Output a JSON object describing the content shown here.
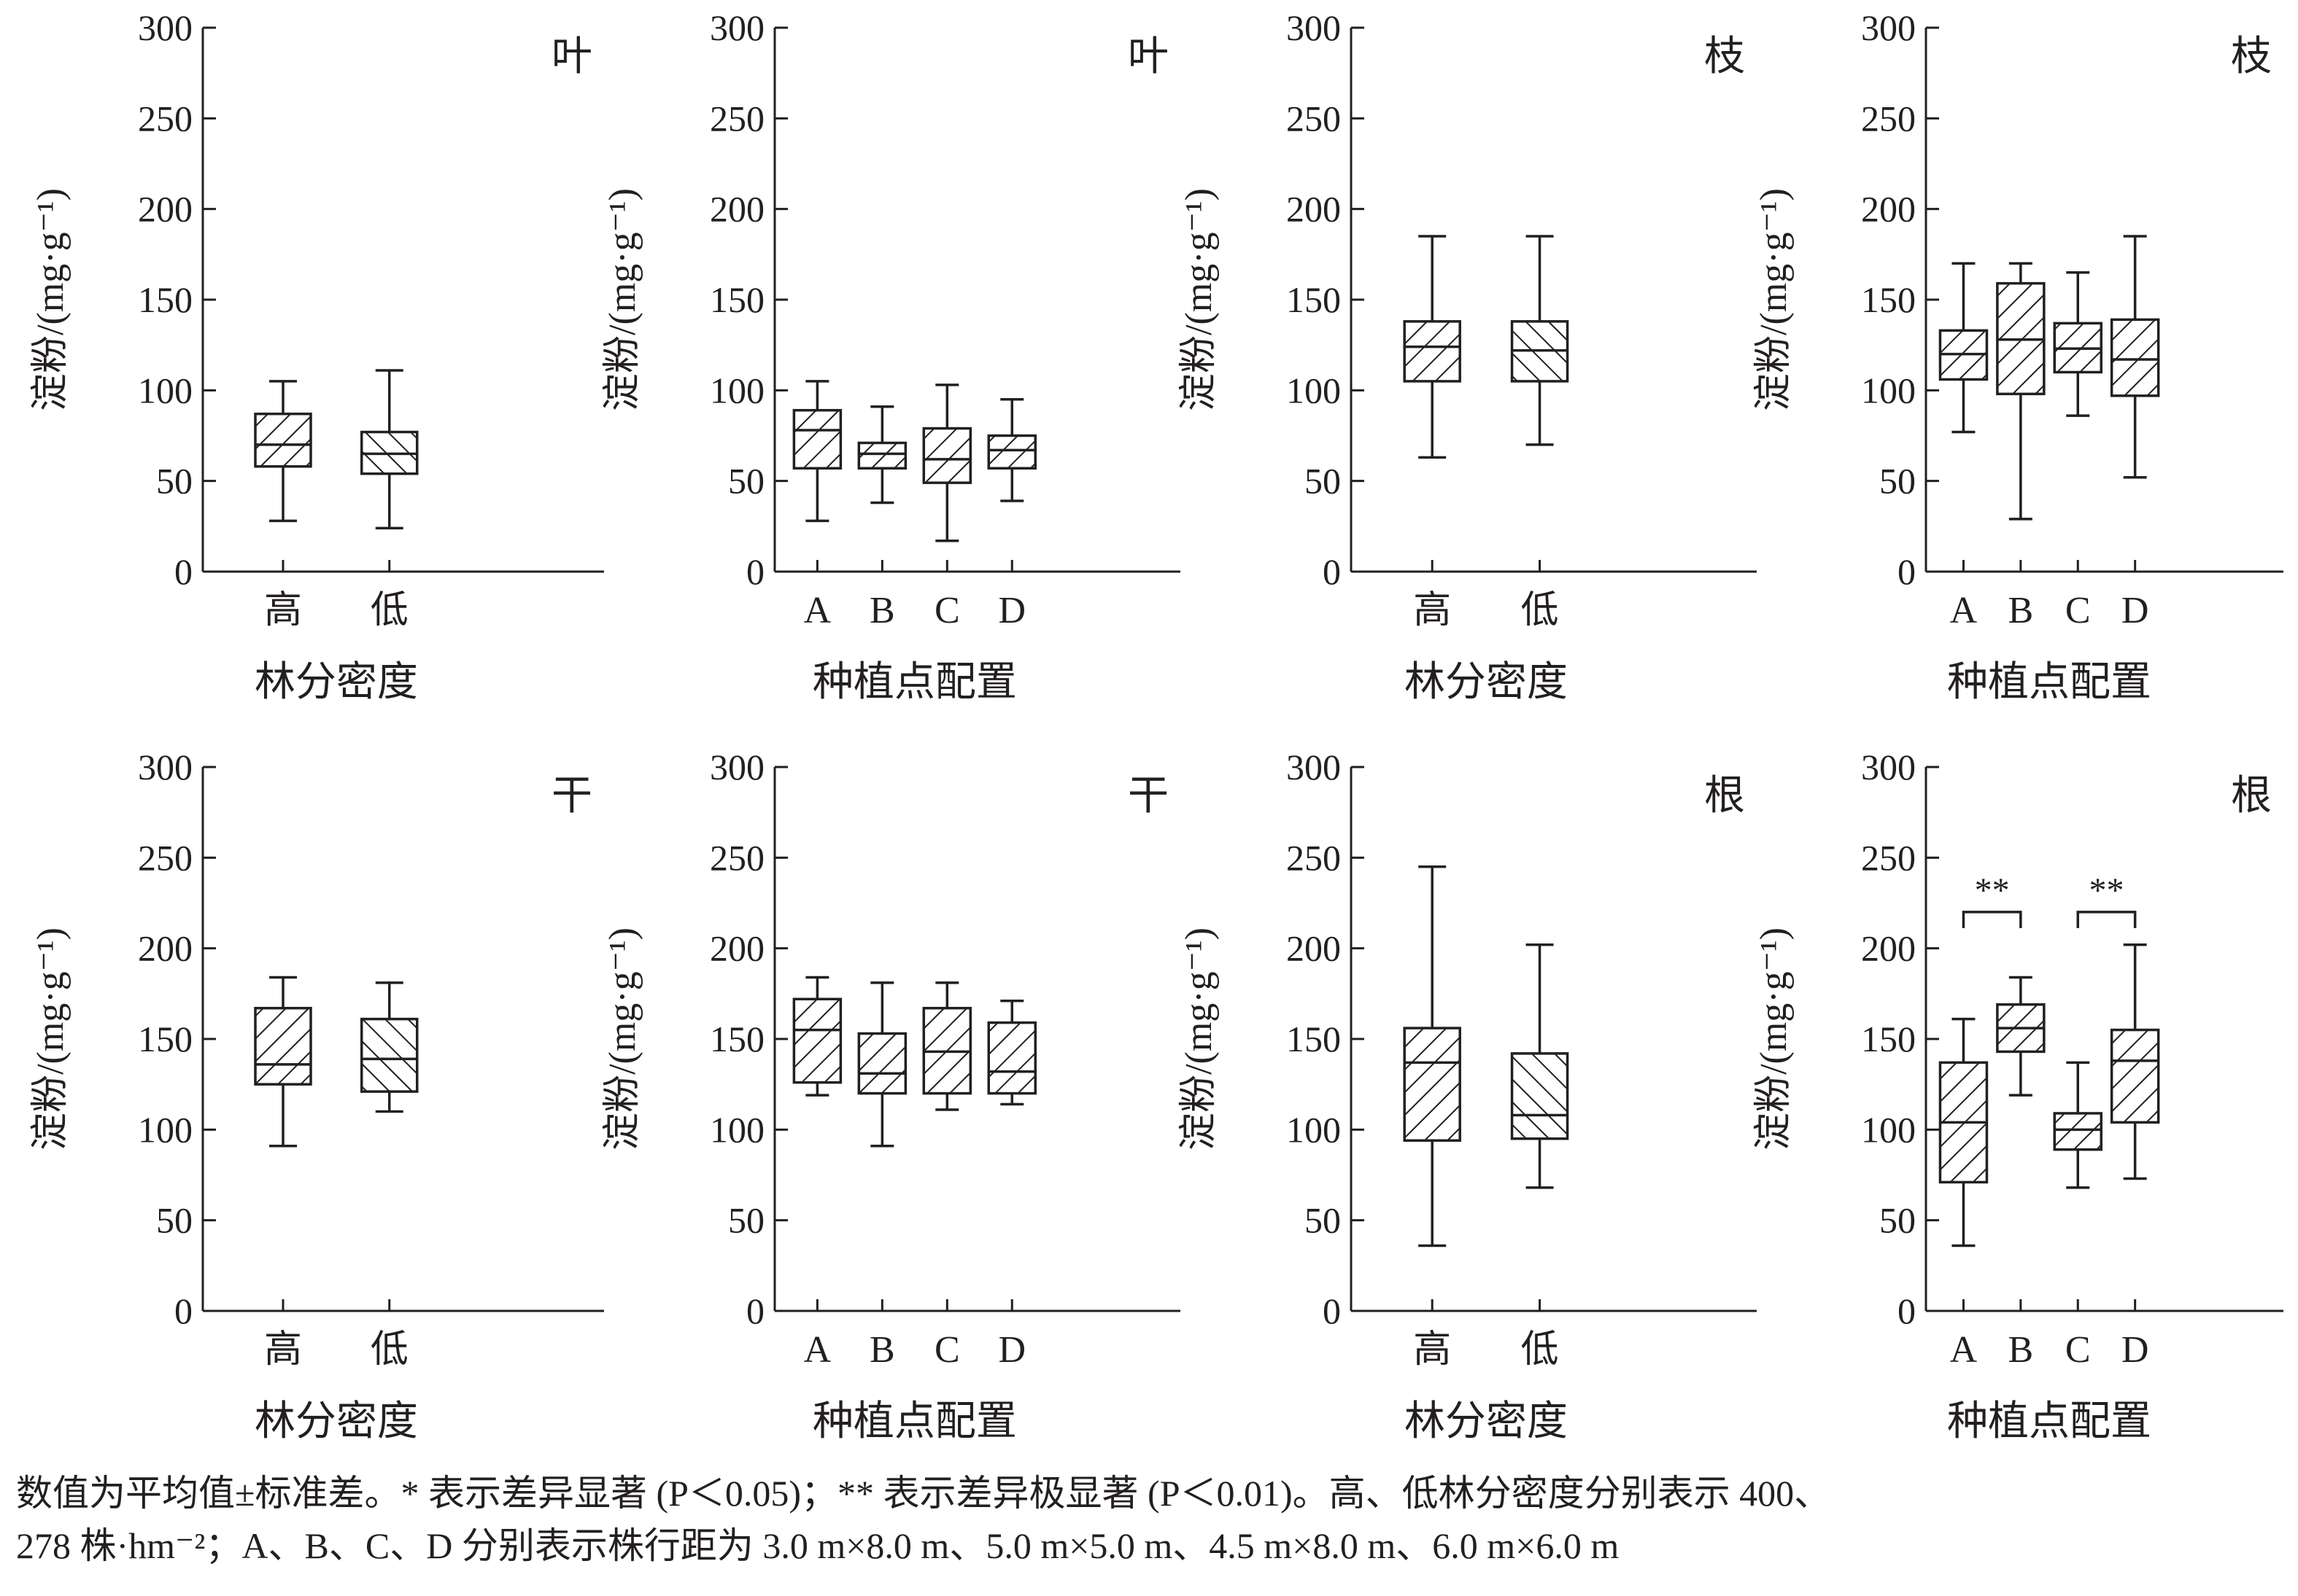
{
  "figure": {
    "caption_line1": "数值为平均值±标准差。* 表示差异显著 (P＜0.05)；** 表示差异极显著 (P＜0.01)。高、低林分密度分别表示 400、",
    "caption_line2": "278 株·hm⁻²；A、B、C、D 分别表示株行距为 3.0 m×8.0 m、5.0 m×5.0 m、4.5 m×8.0 m、6.0 m×6.0 m"
  },
  "colors": {
    "ink": "#231f20",
    "box_fill": "#ffffff"
  },
  "chart_data": [
    {
      "type": "box",
      "tag": "叶",
      "xlabel": "林分密度",
      "ylabel": "淀粉/(mg·g⁻¹)",
      "ylim": [
        0,
        300
      ],
      "yticks": [
        0,
        50,
        100,
        150,
        200,
        250,
        300
      ],
      "categories": [
        "高",
        "低"
      ],
      "boxes": [
        {
          "min": 28,
          "q1": 58,
          "median": 70,
          "q3": 87,
          "max": 105,
          "hatch": "forward"
        },
        {
          "min": 24,
          "q1": 54,
          "median": 65,
          "q3": 77,
          "max": 111,
          "hatch": "back"
        }
      ]
    },
    {
      "type": "box",
      "tag": "叶",
      "xlabel": "种植点配置",
      "ylabel": "淀粉/(mg·g⁻¹)",
      "ylim": [
        0,
        300
      ],
      "yticks": [
        0,
        50,
        100,
        150,
        200,
        250,
        300
      ],
      "categories": [
        "A",
        "B",
        "C",
        "D"
      ],
      "boxes": [
        {
          "min": 28,
          "q1": 57,
          "median": 78,
          "q3": 89,
          "max": 105,
          "hatch": "forward"
        },
        {
          "min": 38,
          "q1": 57,
          "median": 65,
          "q3": 71,
          "max": 91,
          "hatch": "forward"
        },
        {
          "min": 17,
          "q1": 49,
          "median": 62,
          "q3": 79,
          "max": 103,
          "hatch": "forward"
        },
        {
          "min": 39,
          "q1": 57,
          "median": 67,
          "q3": 75,
          "max": 95,
          "hatch": "forward"
        }
      ]
    },
    {
      "type": "box",
      "tag": "枝",
      "xlabel": "林分密度",
      "ylabel": "淀粉/(mg·g⁻¹)",
      "ylim": [
        0,
        300
      ],
      "yticks": [
        0,
        50,
        100,
        150,
        200,
        250,
        300
      ],
      "categories": [
        "高",
        "低"
      ],
      "boxes": [
        {
          "min": 63,
          "q1": 105,
          "median": 124,
          "q3": 138,
          "max": 185,
          "hatch": "forward"
        },
        {
          "min": 70,
          "q1": 105,
          "median": 122,
          "q3": 138,
          "max": 185,
          "hatch": "back"
        }
      ]
    },
    {
      "type": "box",
      "tag": "枝",
      "xlabel": "种植点配置",
      "ylabel": "淀粉/(mg·g⁻¹)",
      "ylim": [
        0,
        300
      ],
      "yticks": [
        0,
        50,
        100,
        150,
        200,
        250,
        300
      ],
      "categories": [
        "A",
        "B",
        "C",
        "D"
      ],
      "boxes": [
        {
          "min": 77,
          "q1": 106,
          "median": 120,
          "q3": 133,
          "max": 170,
          "hatch": "forward"
        },
        {
          "min": 29,
          "q1": 98,
          "median": 128,
          "q3": 159,
          "max": 170,
          "hatch": "forward"
        },
        {
          "min": 86,
          "q1": 110,
          "median": 123,
          "q3": 137,
          "max": 165,
          "hatch": "forward"
        },
        {
          "min": 52,
          "q1": 97,
          "median": 117,
          "q3": 139,
          "max": 185,
          "hatch": "forward"
        }
      ]
    },
    {
      "type": "box",
      "tag": "干",
      "xlabel": "林分密度",
      "ylabel": "淀粉/(mg·g⁻¹)",
      "ylim": [
        0,
        300
      ],
      "yticks": [
        0,
        50,
        100,
        150,
        200,
        250,
        300
      ],
      "categories": [
        "高",
        "低"
      ],
      "boxes": [
        {
          "min": 91,
          "q1": 125,
          "median": 136,
          "q3": 167,
          "max": 184,
          "hatch": "forward"
        },
        {
          "min": 110,
          "q1": 121,
          "median": 139,
          "q3": 161,
          "max": 181,
          "hatch": "back"
        }
      ]
    },
    {
      "type": "box",
      "tag": "干",
      "xlabel": "种植点配置",
      "ylabel": "淀粉/(mg·g⁻¹)",
      "ylim": [
        0,
        300
      ],
      "yticks": [
        0,
        50,
        100,
        150,
        200,
        250,
        300
      ],
      "categories": [
        "A",
        "B",
        "C",
        "D"
      ],
      "boxes": [
        {
          "min": 119,
          "q1": 126,
          "median": 155,
          "q3": 172,
          "max": 184,
          "hatch": "forward"
        },
        {
          "min": 91,
          "q1": 120,
          "median": 131,
          "q3": 153,
          "max": 181,
          "hatch": "forward"
        },
        {
          "min": 111,
          "q1": 120,
          "median": 143,
          "q3": 167,
          "max": 181,
          "hatch": "forward"
        },
        {
          "min": 114,
          "q1": 120,
          "median": 132,
          "q3": 159,
          "max": 171,
          "hatch": "forward"
        }
      ]
    },
    {
      "type": "box",
      "tag": "根",
      "xlabel": "林分密度",
      "ylabel": "淀粉/(mg·g⁻¹)",
      "ylim": [
        0,
        300
      ],
      "yticks": [
        0,
        50,
        100,
        150,
        200,
        250,
        300
      ],
      "categories": [
        "高",
        "低"
      ],
      "boxes": [
        {
          "min": 36,
          "q1": 94,
          "median": 137,
          "q3": 156,
          "max": 245,
          "hatch": "forward"
        },
        {
          "min": 68,
          "q1": 95,
          "median": 108,
          "q3": 142,
          "max": 202,
          "hatch": "back"
        }
      ]
    },
    {
      "type": "box",
      "tag": "根",
      "xlabel": "种植点配置",
      "ylabel": "淀粉/(mg·g⁻¹)",
      "ylim": [
        0,
        300
      ],
      "yticks": [
        0,
        50,
        100,
        150,
        200,
        250,
        300
      ],
      "categories": [
        "A",
        "B",
        "C",
        "D"
      ],
      "boxes": [
        {
          "min": 36,
          "q1": 71,
          "median": 104,
          "q3": 137,
          "max": 161,
          "hatch": "forward"
        },
        {
          "min": 119,
          "q1": 143,
          "median": 156,
          "q3": 169,
          "max": 184,
          "hatch": "forward"
        },
        {
          "min": 68,
          "q1": 89,
          "median": 100,
          "q3": 109,
          "max": 137,
          "hatch": "forward"
        },
        {
          "min": 73,
          "q1": 104,
          "median": 138,
          "q3": 155,
          "max": 202,
          "hatch": "forward"
        }
      ],
      "significance": [
        {
          "from": 0,
          "to": 1,
          "label": "**",
          "y": 220
        },
        {
          "from": 2,
          "to": 3,
          "label": "**",
          "y": 220
        }
      ]
    }
  ]
}
